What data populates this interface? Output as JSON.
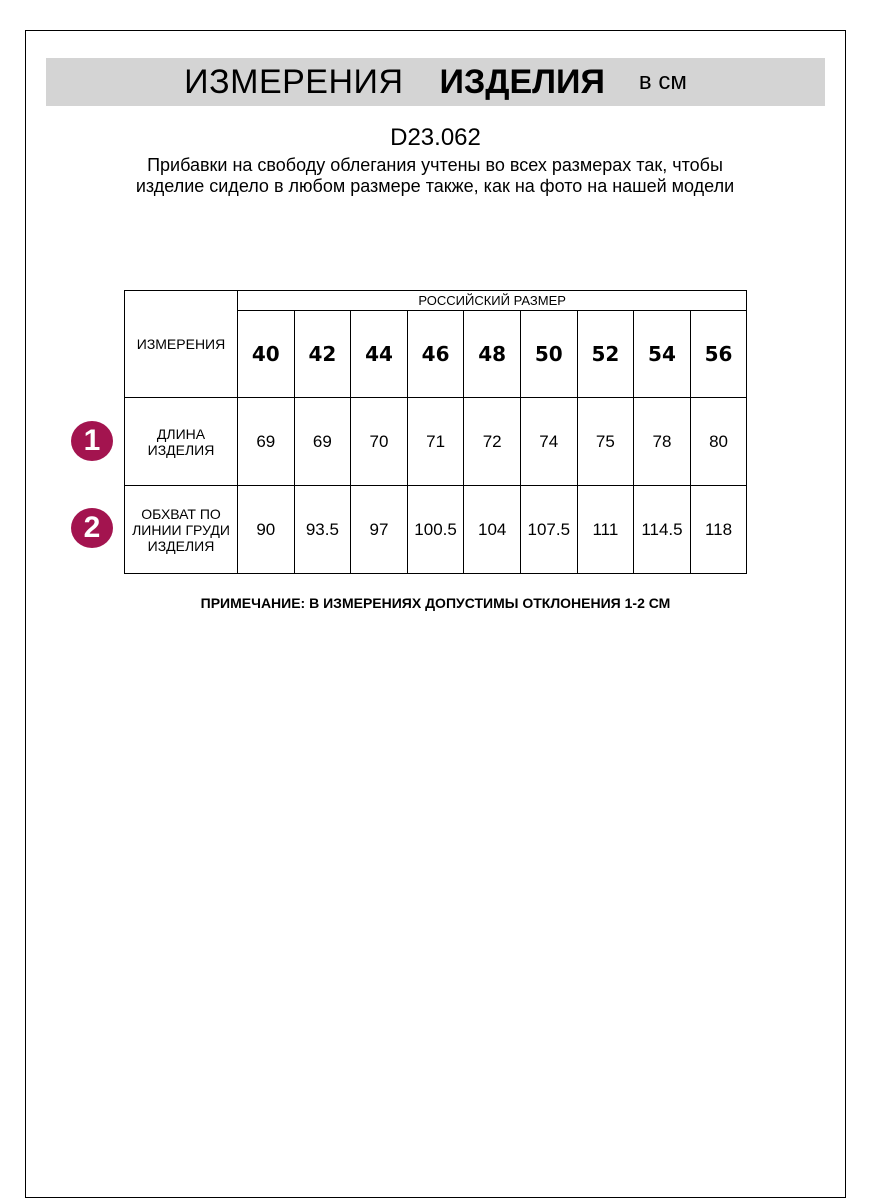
{
  "header": {
    "title_regular": "ИЗМЕРЕНИЯ",
    "title_bold": "ИЗДЕЛИЯ",
    "unit": "в см"
  },
  "article": "D23.062",
  "description": "Прибавки на свободу облегания учтены во всех размерах так, чтобы изделие сидело в любом размере также, как на фото на нашей модели",
  "table": {
    "measure_header": "ИЗМЕРЕНИЯ",
    "size_group_header": "РОССИЙСКИЙ РАЗМЕР",
    "sizes": [
      "40",
      "42",
      "44",
      "46",
      "48",
      "50",
      "52",
      "54",
      "56"
    ],
    "rows": [
      {
        "badge": "1",
        "label": "ДЛИНА ИЗДЕЛИЯ",
        "values": [
          "69",
          "69",
          "70",
          "71",
          "72",
          "74",
          "75",
          "78",
          "80"
        ]
      },
      {
        "badge": "2",
        "label": "ОБХВАТ ПО ЛИНИИ ГРУДИ ИЗДЕЛИЯ",
        "values": [
          "90",
          "93.5",
          "97",
          "100.5",
          "104",
          "107.5",
          "111",
          "114.5",
          "118"
        ]
      }
    ]
  },
  "note": "ПРИМЕЧАНИЕ: В ИЗМЕРЕНИЯХ ДОПУСТИМЫ ОТКЛОНЕНИЯ 1-2 СМ",
  "colors": {
    "badge": "#a3144f",
    "title_bar": "#d4d4d4"
  }
}
